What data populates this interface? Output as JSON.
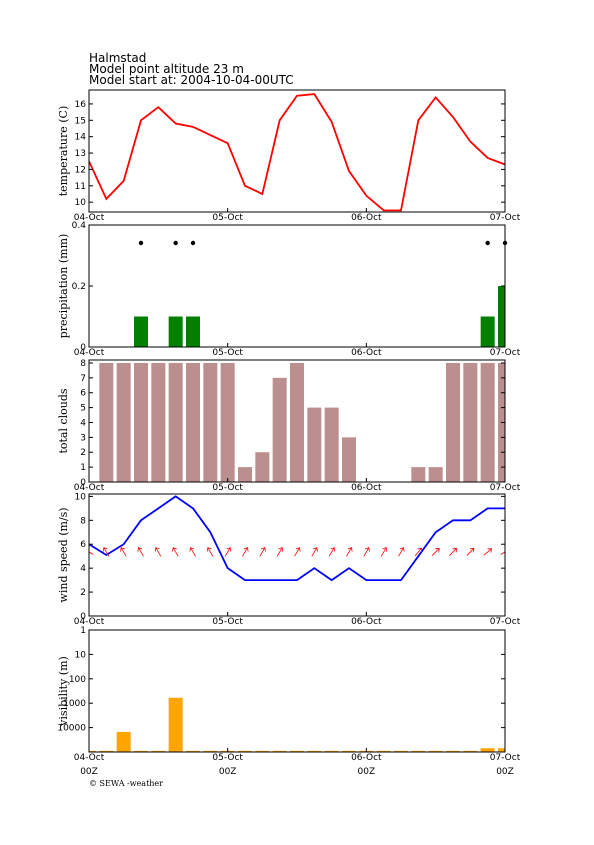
{
  "header": {
    "location": "Halmstad",
    "altitude": "Model point altitude  23 m",
    "model_start": "Model start at: 2004-10-04-00UTC"
  },
  "footer": "© SEWA -weather",
  "chart_data": [
    {
      "type": "line",
      "y_label": "temperature (C)",
      "color": "#ff0000",
      "x": [
        0,
        3,
        6,
        9,
        12,
        15,
        18,
        21,
        24,
        27,
        30,
        33,
        36,
        39,
        42,
        45,
        48,
        51,
        54,
        57,
        60,
        63,
        66,
        69,
        72
      ],
      "values": [
        12.5,
        10.2,
        11.3,
        15.0,
        15.8,
        14.8,
        14.6,
        14.1,
        13.6,
        11.0,
        10.5,
        15.0,
        16.5,
        16.6,
        14.9,
        11.9,
        10.4,
        9.5,
        9.5,
        15.0,
        16.4,
        15.2,
        13.7,
        12.7,
        12.3
      ],
      "xlim": [
        0,
        72
      ],
      "xticks": [
        {
          "value": 0,
          "label": "04-Oct"
        },
        {
          "value": 24,
          "label": "05-Oct"
        },
        {
          "value": 48,
          "label": "06-Oct"
        },
        {
          "value": 72,
          "label": "07-Oct"
        }
      ],
      "ylim": [
        9.4,
        16.85
      ],
      "yticks": [
        10,
        11,
        12,
        13,
        14,
        15,
        16
      ]
    },
    {
      "type": "bar",
      "y_label": "precipitation (mm)",
      "color": "#008000",
      "symbols": true,
      "x": [
        0,
        3,
        6,
        9,
        12,
        15,
        18,
        21,
        24,
        27,
        30,
        33,
        36,
        39,
        42,
        45,
        48,
        51,
        54,
        57,
        60,
        63,
        66,
        69,
        72
      ],
      "values": [
        0,
        0,
        0,
        0.1,
        0,
        0.1,
        0.1,
        0,
        0,
        0,
        0,
        0,
        0,
        0,
        0,
        0,
        0,
        0,
        0,
        0,
        0,
        0,
        0,
        0.1,
        0.2
      ],
      "xlim": [
        0,
        72
      ],
      "xticks": [
        {
          "value": 0,
          "label": "04-Oct"
        },
        {
          "value": 24,
          "label": "05-Oct"
        },
        {
          "value": 48,
          "label": "06-Oct"
        },
        {
          "value": 72,
          "label": "07-Oct"
        }
      ],
      "ylim": [
        0,
        0.4
      ],
      "yticks": [
        0,
        0.2,
        0.4
      ]
    },
    {
      "type": "bar",
      "y_label": "total clouds",
      "color": "#bc8f8f",
      "x": [
        0,
        3,
        6,
        9,
        12,
        15,
        18,
        21,
        24,
        27,
        30,
        33,
        36,
        39,
        42,
        45,
        48,
        51,
        54,
        57,
        60,
        63,
        66,
        69,
        72
      ],
      "values": [
        0,
        8,
        8,
        8,
        8,
        8,
        8,
        8,
        8,
        1,
        2,
        7,
        8,
        5,
        5,
        3,
        0,
        0,
        0,
        1,
        1,
        8,
        8,
        8,
        8
      ],
      "xlim": [
        0,
        72
      ],
      "xticks": [
        {
          "value": 0,
          "label": "04-Oct"
        },
        {
          "value": 24,
          "label": "05-Oct"
        },
        {
          "value": 48,
          "label": "06-Oct"
        },
        {
          "value": 72,
          "label": "07-Oct"
        }
      ],
      "ylim": [
        0,
        8.2
      ],
      "yticks": [
        0,
        1,
        2,
        3,
        4,
        5,
        6,
        7,
        8
      ]
    },
    {
      "type": "line",
      "y_label": "wind speed (m/s)",
      "color": "#0000ff",
      "arrow_color": "#ff0000",
      "x": [
        0,
        3,
        6,
        9,
        12,
        15,
        18,
        21,
        24,
        27,
        30,
        33,
        36,
        39,
        42,
        45,
        48,
        51,
        54,
        57,
        60,
        63,
        66,
        69,
        72
      ],
      "values": [
        6,
        5.1,
        6,
        8,
        9,
        10,
        9,
        7,
        4,
        3,
        3,
        3,
        3,
        4,
        3,
        4,
        3,
        3,
        3,
        5,
        7,
        8,
        8,
        9,
        9
      ],
      "wind_direction": [
        300,
        330,
        330,
        330,
        330,
        330,
        330,
        330,
        30,
        30,
        30,
        30,
        30,
        30,
        30,
        30,
        30,
        30,
        30,
        40,
        45,
        45,
        45,
        50,
        60
      ],
      "xlim": [
        0,
        72
      ],
      "xticks": [
        {
          "value": 0,
          "label": "04-Oct"
        },
        {
          "value": 24,
          "label": "05-Oct"
        },
        {
          "value": 48,
          "label": "06-Oct"
        },
        {
          "value": 72,
          "label": "07-Oct"
        }
      ],
      "ylim": [
        0,
        10.2
      ],
      "yticks": [
        0,
        2,
        4,
        6,
        8,
        10
      ]
    },
    {
      "type": "bar",
      "y_label": "visibility (m)",
      "color": "#ffa500",
      "log_scale": true,
      "yreverse": true,
      "x": [
        0,
        3,
        6,
        9,
        12,
        15,
        18,
        21,
        24,
        27,
        30,
        33,
        36,
        39,
        42,
        45,
        48,
        51,
        54,
        57,
        60,
        63,
        66,
        69,
        72
      ],
      "values": [
        90000,
        90000,
        15000,
        90000,
        90000,
        600,
        90000,
        90000,
        90000,
        90000,
        90000,
        90000,
        90000,
        90000,
        90000,
        90000,
        90000,
        90000,
        90000,
        90000,
        90000,
        90000,
        90000,
        70000,
        70000
      ],
      "xlim": [
        0,
        72
      ],
      "xticks": [
        {
          "value": 0,
          "label": "04-Oct"
        },
        {
          "value": 24,
          "label": "05-Oct"
        },
        {
          "value": 48,
          "label": "06-Oct"
        },
        {
          "value": 72,
          "label": "07-Oct"
        }
      ],
      "xticks_secondary": [
        {
          "value": 0,
          "label": "00Z"
        },
        {
          "value": 24,
          "label": "00Z"
        },
        {
          "value": 48,
          "label": "00Z"
        },
        {
          "value": 72,
          "label": "00Z"
        }
      ],
      "ylim": [
        1,
        100000
      ],
      "yticks": [
        1,
        10,
        100,
        1000,
        10000
      ]
    }
  ]
}
